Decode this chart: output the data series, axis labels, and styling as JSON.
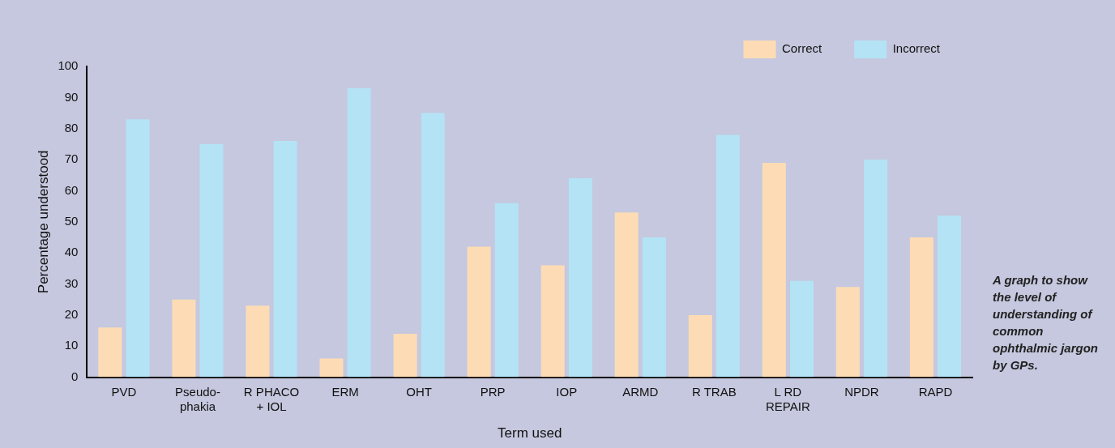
{
  "chart_data": {
    "type": "bar",
    "xlabel": "Term used",
    "ylabel": "Percentage understood",
    "categories": [
      "PVD",
      "Pseudo-\nphakia",
      "R PHACO\n+ IOL",
      "ERM",
      "OHT",
      "PRP",
      "IOP",
      "ARMD",
      "R TRAB",
      "L RD\nREPAIR",
      "NPDR",
      "RAPD"
    ],
    "series": [
      {
        "name": "Correct",
        "color": "#fddcb5",
        "values": [
          16,
          25,
          23,
          6,
          14,
          42,
          36,
          53,
          20,
          69,
          29,
          45
        ]
      },
      {
        "name": "Incorrect",
        "color": "#b3e3f5",
        "values": [
          83,
          75,
          76,
          93,
          85,
          56,
          64,
          45,
          78,
          31,
          70,
          52
        ]
      }
    ],
    "ylim": [
      0,
      100
    ],
    "yticks": [
      0,
      10,
      20,
      30,
      40,
      50,
      60,
      70,
      80,
      90,
      100
    ],
    "grid": false,
    "legend": "top right",
    "annotations": [
      "A graph to show the level of understanding of common ophthalmic jargon by GPs."
    ]
  }
}
